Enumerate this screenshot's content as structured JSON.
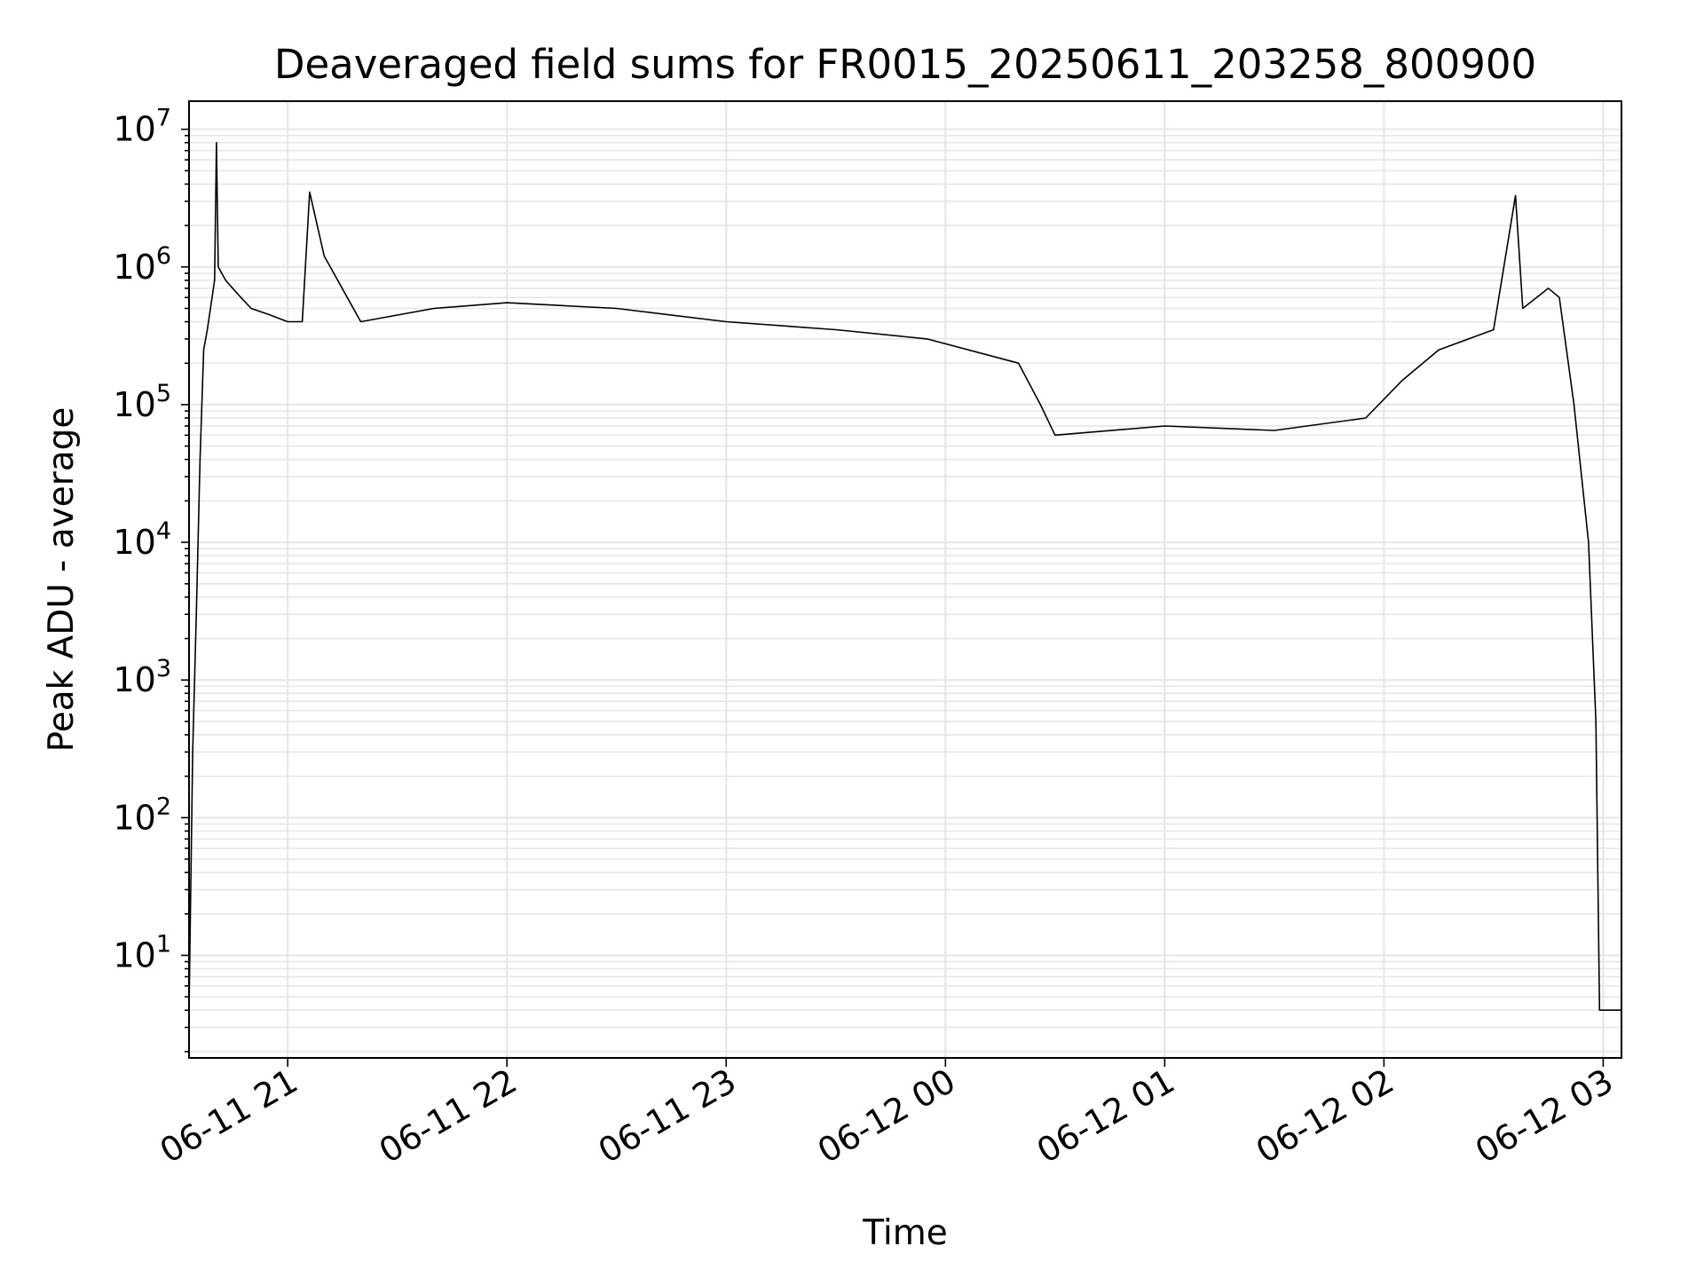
{
  "chart_data": {
    "type": "line",
    "title": "Deaveraged field sums for FR0015_20250611_203258_800900",
    "xlabel": "Time",
    "ylabel": "Peak ADU - average",
    "yscale": "log",
    "ylim": [
      1.8,
      16000000
    ],
    "xlim": [
      "2025-06-11 20:33",
      "2025-06-12 03:05"
    ],
    "grid": true,
    "x_ticks": [
      {
        "t": "2025-06-11 21:00",
        "label": "06-11 21"
      },
      {
        "t": "2025-06-11 22:00",
        "label": "06-11 22"
      },
      {
        "t": "2025-06-11 23:00",
        "label": "06-11 23"
      },
      {
        "t": "2025-06-12 00:00",
        "label": "06-12 00"
      },
      {
        "t": "2025-06-12 01:00",
        "label": "06-12 01"
      },
      {
        "t": "2025-06-12 02:00",
        "label": "06-12 02"
      },
      {
        "t": "2025-06-12 03:00",
        "label": "06-12 03"
      }
    ],
    "y_ticks": [
      {
        "v": 10,
        "base": "10",
        "exp": "1"
      },
      {
        "v": 100,
        "base": "10",
        "exp": "2"
      },
      {
        "v": 1000,
        "base": "10",
        "exp": "3"
      },
      {
        "v": 10000,
        "base": "10",
        "exp": "4"
      },
      {
        "v": 100000,
        "base": "10",
        "exp": "5"
      },
      {
        "v": 1000000,
        "base": "10",
        "exp": "6"
      },
      {
        "v": 10000000,
        "base": "10",
        "exp": "7"
      }
    ],
    "series": [
      {
        "color": "#000000",
        "points": [
          [
            "2025-06-11 20:33",
            4
          ],
          [
            "2025-06-11 20:34",
            300
          ],
          [
            "2025-06-11 20:35",
            3000
          ],
          [
            "2025-06-11 20:36",
            40000
          ],
          [
            "2025-06-11 20:37",
            250000
          ],
          [
            "2025-06-11 20:38",
            350000
          ],
          [
            "2025-06-11 20:40",
            800000
          ],
          [
            "2025-06-11 20:40:30",
            8000000
          ],
          [
            "2025-06-11 20:41",
            1000000
          ],
          [
            "2025-06-11 20:43",
            800000
          ],
          [
            "2025-06-11 20:46",
            650000
          ],
          [
            "2025-06-11 20:50",
            500000
          ],
          [
            "2025-06-11 20:55",
            450000
          ],
          [
            "2025-06-11 21:00",
            400000
          ],
          [
            "2025-06-11 21:04",
            400000
          ],
          [
            "2025-06-11 21:06",
            3500000
          ],
          [
            "2025-06-11 21:10",
            1200000
          ],
          [
            "2025-06-11 21:20",
            400000
          ],
          [
            "2025-06-11 21:40",
            500000
          ],
          [
            "2025-06-11 22:00",
            550000
          ],
          [
            "2025-06-11 22:30",
            500000
          ],
          [
            "2025-06-11 23:00",
            400000
          ],
          [
            "2025-06-11 23:30",
            350000
          ],
          [
            "2025-06-11 23:55",
            300000
          ],
          [
            "2025-06-12 00:20",
            200000
          ],
          [
            "2025-06-12 00:26",
            100000
          ],
          [
            "2025-06-12 00:30",
            60000
          ],
          [
            "2025-06-12 01:00",
            70000
          ],
          [
            "2025-06-12 01:30",
            65000
          ],
          [
            "2025-06-12 01:55",
            80000
          ],
          [
            "2025-06-12 02:05",
            150000
          ],
          [
            "2025-06-12 02:15",
            250000
          ],
          [
            "2025-06-12 02:30",
            350000
          ],
          [
            "2025-06-12 02:36",
            3300000
          ],
          [
            "2025-06-12 02:38",
            500000
          ],
          [
            "2025-06-12 02:45",
            700000
          ],
          [
            "2025-06-12 02:48",
            600000
          ],
          [
            "2025-06-12 02:52",
            100000
          ],
          [
            "2025-06-12 02:56",
            10000
          ],
          [
            "2025-06-12 02:58",
            500
          ],
          [
            "2025-06-12 02:59",
            4
          ],
          [
            "2025-06-12 03:05",
            4
          ]
        ]
      }
    ]
  }
}
